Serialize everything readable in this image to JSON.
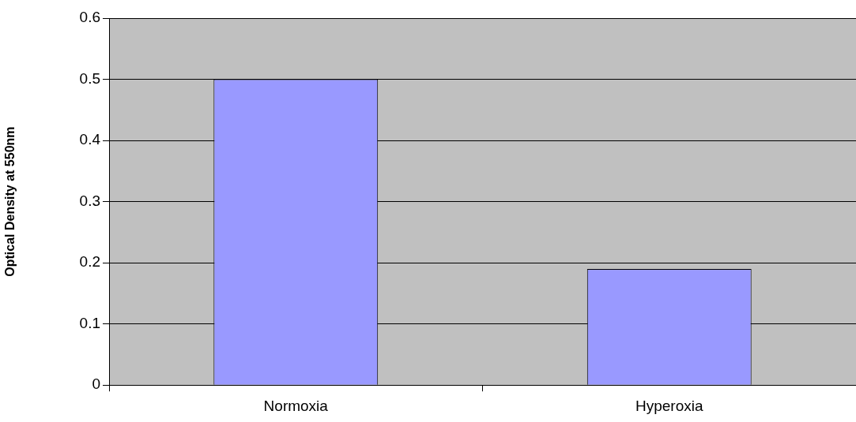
{
  "chart_data": {
    "type": "bar",
    "ylabel": "Optical Density at 550nm",
    "categories": [
      "Normoxia",
      "Hyperoxia"
    ],
    "values": [
      0.5,
      0.19
    ],
    "color": "#9999ff",
    "ylim": [
      0,
      0.6
    ],
    "yticks": [
      0,
      0.1,
      0.2,
      0.3,
      0.4,
      0.5,
      0.6
    ],
    "grid": "y",
    "legend": false
  }
}
